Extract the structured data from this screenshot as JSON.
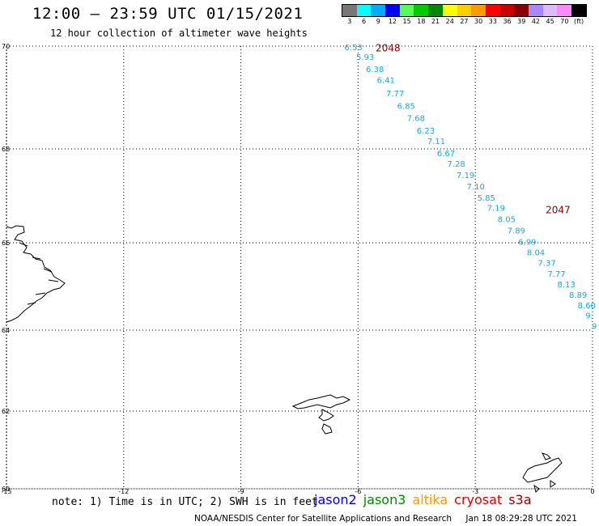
{
  "header": {
    "title": "12:00 – 23:59 UTC 01/15/2021",
    "subtitle": "12 hour collection of altimeter wave heights"
  },
  "legend": {
    "swatches": [
      {
        "color": "#777777",
        "label": "3"
      },
      {
        "color": "#00ffff",
        "label": "6"
      },
      {
        "color": "#00aaff",
        "label": "9"
      },
      {
        "color": "#0000ff",
        "label": "12"
      },
      {
        "color": "#55ff55",
        "label": "15"
      },
      {
        "color": "#00cc00",
        "label": "18"
      },
      {
        "color": "#008800",
        "label": "21"
      },
      {
        "color": "#ffff00",
        "label": "24"
      },
      {
        "color": "#ffcc00",
        "label": "27"
      },
      {
        "color": "#ff9900",
        "label": "30"
      },
      {
        "color": "#ff0000",
        "label": "33"
      },
      {
        "color": "#cc0000",
        "label": "36"
      },
      {
        "color": "#880000",
        "label": "39"
      },
      {
        "color": "#aa88ff",
        "label": "42"
      },
      {
        "color": "#ddbbff",
        "label": "45"
      },
      {
        "color": "#ff88ff",
        "label": "70"
      },
      {
        "color": "#000000",
        "label": "(ft)"
      }
    ]
  },
  "map": {
    "lat_labels": [
      "70",
      "68",
      "66",
      "64",
      "62",
      "60"
    ],
    "lon_labels": [
      "-15",
      "-12",
      "-9",
      "-6",
      "-3",
      "0"
    ],
    "track_color": "#1aa7dd",
    "orbit_color": "#880000",
    "orbits": [
      {
        "label": "2048",
        "lon": -5.55,
        "lat": 69.96
      },
      {
        "label": "2047",
        "lon": -1.2,
        "lat": 66.7
      }
    ],
    "track": [
      {
        "v": "6.53",
        "lon": -6.35,
        "lat": 69.97
      },
      {
        "v": "5.93",
        "lon": -6.05,
        "lat": 69.78
      },
      {
        "v": "6.38",
        "lon": -5.8,
        "lat": 69.54
      },
      {
        "v": "6.41",
        "lon": -5.52,
        "lat": 69.33
      },
      {
        "v": "7.77",
        "lon": -5.28,
        "lat": 69.07
      },
      {
        "v": "6.85",
        "lon": -5.0,
        "lat": 68.83
      },
      {
        "v": "7.68",
        "lon": -4.75,
        "lat": 68.59
      },
      {
        "v": "6.23",
        "lon": -4.5,
        "lat": 68.35
      },
      {
        "v": "7.11",
        "lon": -4.23,
        "lat": 68.14
      },
      {
        "v": "6.67",
        "lon": -3.98,
        "lat": 67.9
      },
      {
        "v": "7.28",
        "lon": -3.72,
        "lat": 67.67
      },
      {
        "v": "7.19",
        "lon": -3.48,
        "lat": 67.43
      },
      {
        "v": "7.10",
        "lon": -3.22,
        "lat": 67.19
      },
      {
        "v": "5.85",
        "lon": -2.95,
        "lat": 66.95
      },
      {
        "v": "7.19",
        "lon": -2.7,
        "lat": 66.73
      },
      {
        "v": "8.05",
        "lon": -2.43,
        "lat": 66.49
      },
      {
        "v": "7.89",
        "lon": -2.18,
        "lat": 66.25
      },
      {
        "v": "6.99",
        "lon": -1.9,
        "lat": 66.01
      },
      {
        "v": "8.04",
        "lon": -1.68,
        "lat": 65.77
      },
      {
        "v": "7.37",
        "lon": -1.4,
        "lat": 65.53
      },
      {
        "v": "7.77",
        "lon": -1.15,
        "lat": 65.28
      },
      {
        "v": "8.13",
        "lon": -0.9,
        "lat": 65.04
      },
      {
        "v": "8.89",
        "lon": -0.6,
        "lat": 64.8
      },
      {
        "v": "8.60",
        "lon": -0.38,
        "lat": 64.56
      },
      {
        "v": "9.",
        "lon": -0.18,
        "lat": 64.32
      },
      {
        "v": "9",
        "lon": -0.02,
        "lat": 64.08
      }
    ]
  },
  "footer": {
    "note": "note: 1) Time is in UTC; 2) SWH is in feet",
    "satellites": [
      {
        "name": "jason2",
        "color": "#0000ee"
      },
      {
        "name": "jason3",
        "color": "#008800"
      },
      {
        "name": "altika",
        "color": "#ff9900"
      },
      {
        "name": "cryosat",
        "color": "#dd0000"
      },
      {
        "name": "s3a",
        "color": "#990000"
      }
    ],
    "credit": "NOAA/NESDIS Center for Satellite Applications and Research",
    "timestamp": "Jan 18 08:29:28 UTC 2021"
  }
}
